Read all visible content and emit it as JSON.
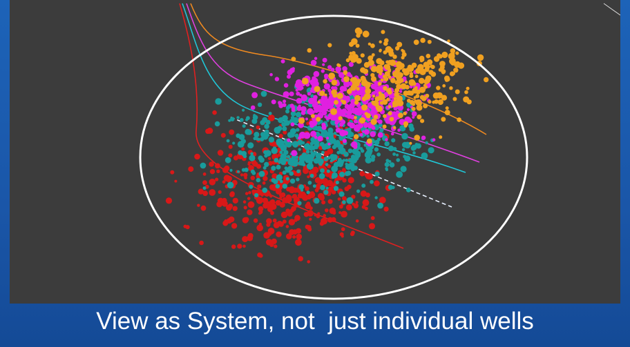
{
  "caption": "View as System, not  just individual wells"
}
